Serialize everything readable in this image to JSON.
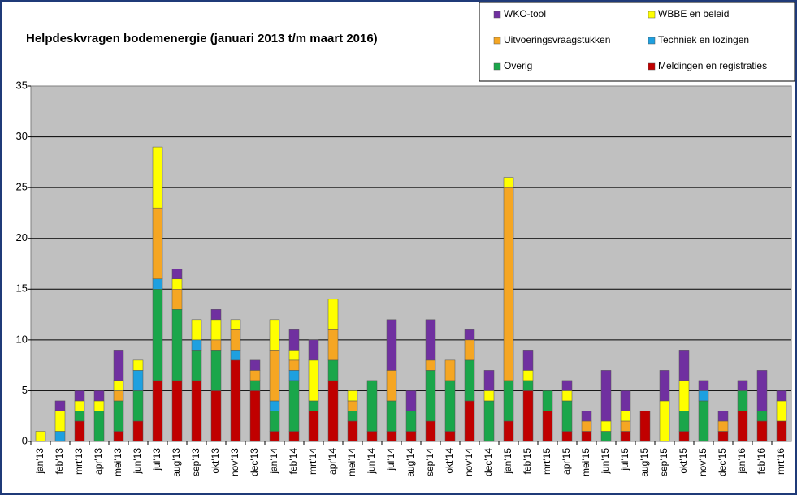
{
  "chart_data": {
    "type": "stacked_bar",
    "title": "Helpdeskvragen bodemenergie (januari 2013 t/m maart 2016)",
    "categories": [
      "jan'13",
      "feb'13",
      "mrt'13",
      "apr'13",
      "mei'13",
      "jun'13",
      "jul'13",
      "aug'13",
      "sep'13",
      "okt'13",
      "nov'13",
      "dec'13",
      "jan'14",
      "feb'14",
      "mrt'14",
      "apr'14",
      "mei'14",
      "jun'14",
      "jul'14",
      "aug'14",
      "sep'14",
      "okt'14",
      "nov'14",
      "dec'14",
      "jan'15",
      "feb'15",
      "mrt'15",
      "apr'15",
      "mei'15",
      "jun'15",
      "jul'15",
      "aug'15",
      "sep'15",
      "okt'15",
      "nov'15",
      "dec'15",
      "jan'16",
      "feb'16",
      "mrt'16"
    ],
    "series": [
      {
        "name": "WKO-tool",
        "color": "#7030a0",
        "values": [
          0,
          1,
          1,
          1,
          3,
          0,
          0,
          1,
          0,
          1,
          0,
          1,
          0,
          2,
          2,
          0,
          0,
          0,
          5,
          2,
          4,
          0,
          1,
          2,
          0,
          2,
          0,
          1,
          1,
          5,
          2,
          0,
          3,
          3,
          1,
          1,
          1,
          4,
          1
        ]
      },
      {
        "name": "WBBE en beleid",
        "color": "#ffff00",
        "values": [
          1,
          2,
          1,
          1,
          1,
          1,
          6,
          1,
          2,
          2,
          1,
          0,
          3,
          1,
          4,
          3,
          1,
          0,
          0,
          0,
          0,
          0,
          0,
          1,
          1,
          1,
          0,
          1,
          0,
          1,
          1,
          0,
          4,
          3,
          0,
          0,
          0,
          0,
          2
        ]
      },
      {
        "name": "Uitvoeringsvraagstukken",
        "color": "#f5a623",
        "values": [
          0,
          0,
          0,
          0,
          1,
          0,
          7,
          2,
          0,
          1,
          2,
          1,
          5,
          1,
          0,
          3,
          1,
          0,
          3,
          0,
          1,
          2,
          2,
          0,
          19,
          0,
          0,
          0,
          1,
          0,
          1,
          0,
          0,
          0,
          0,
          1,
          0,
          0,
          0
        ]
      },
      {
        "name": "Techniek en lozingen",
        "color": "#1ea0e0",
        "values": [
          0,
          1,
          0,
          0,
          0,
          2,
          1,
          0,
          1,
          0,
          1,
          0,
          1,
          1,
          0,
          0,
          0,
          0,
          0,
          0,
          0,
          0,
          0,
          0,
          0,
          0,
          0,
          0,
          0,
          0,
          0,
          0,
          0,
          0,
          1,
          0,
          0,
          0,
          0
        ]
      },
      {
        "name": "Overig",
        "color": "#1aa64a",
        "values": [
          0,
          0,
          1,
          3,
          3,
          3,
          9,
          7,
          3,
          4,
          0,
          1,
          2,
          5,
          1,
          2,
          1,
          5,
          3,
          2,
          5,
          5,
          4,
          4,
          4,
          1,
          2,
          3,
          0,
          1,
          0,
          0,
          0,
          2,
          4,
          0,
          2,
          1,
          0
        ]
      },
      {
        "name": "Meldingen en registraties",
        "color": "#c00000",
        "values": [
          0,
          0,
          2,
          0,
          1,
          2,
          6,
          6,
          6,
          5,
          8,
          5,
          1,
          1,
          3,
          6,
          2,
          1,
          1,
          1,
          2,
          1,
          4,
          0,
          2,
          5,
          3,
          1,
          1,
          0,
          1,
          3,
          0,
          1,
          0,
          1,
          3,
          2,
          2
        ]
      }
    ],
    "ylim": [
      0,
      35
    ],
    "yticks": [
      0,
      5,
      10,
      15,
      20,
      25,
      30,
      35
    ],
    "grid": true,
    "legend": "top-right"
  }
}
